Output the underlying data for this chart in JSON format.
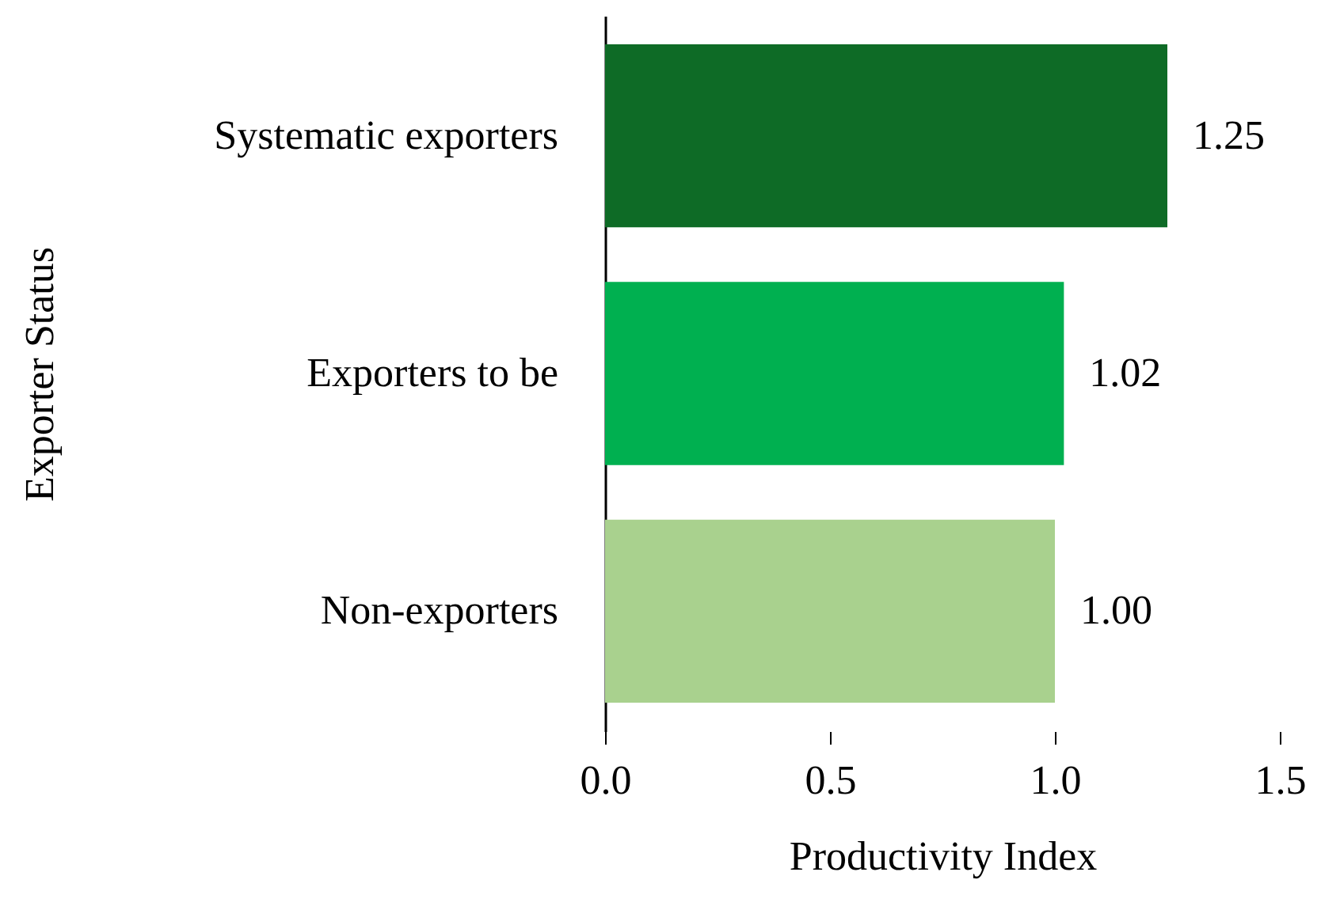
{
  "chart_data": {
    "type": "bar",
    "orientation": "horizontal",
    "xlabel": "Productivity Index",
    "ylabel": "Exporter Status",
    "categories": [
      "Systematic exporters",
      "Exporters to be",
      "Non-exporters"
    ],
    "values": [
      1.25,
      1.02,
      1.0
    ],
    "value_labels": [
      "1.25",
      "1.02",
      "1.00"
    ],
    "colors": [
      "#0e6b26",
      "#00b050",
      "#a9d18e"
    ],
    "xlim": [
      0,
      1.5
    ],
    "xticks": [
      {
        "value": 0,
        "label": "0.0"
      },
      {
        "value": 0.5,
        "label": "0.5"
      },
      {
        "value": 1,
        "label": "1.0"
      },
      {
        "value": 1.5,
        "label": "1.5"
      }
    ]
  }
}
